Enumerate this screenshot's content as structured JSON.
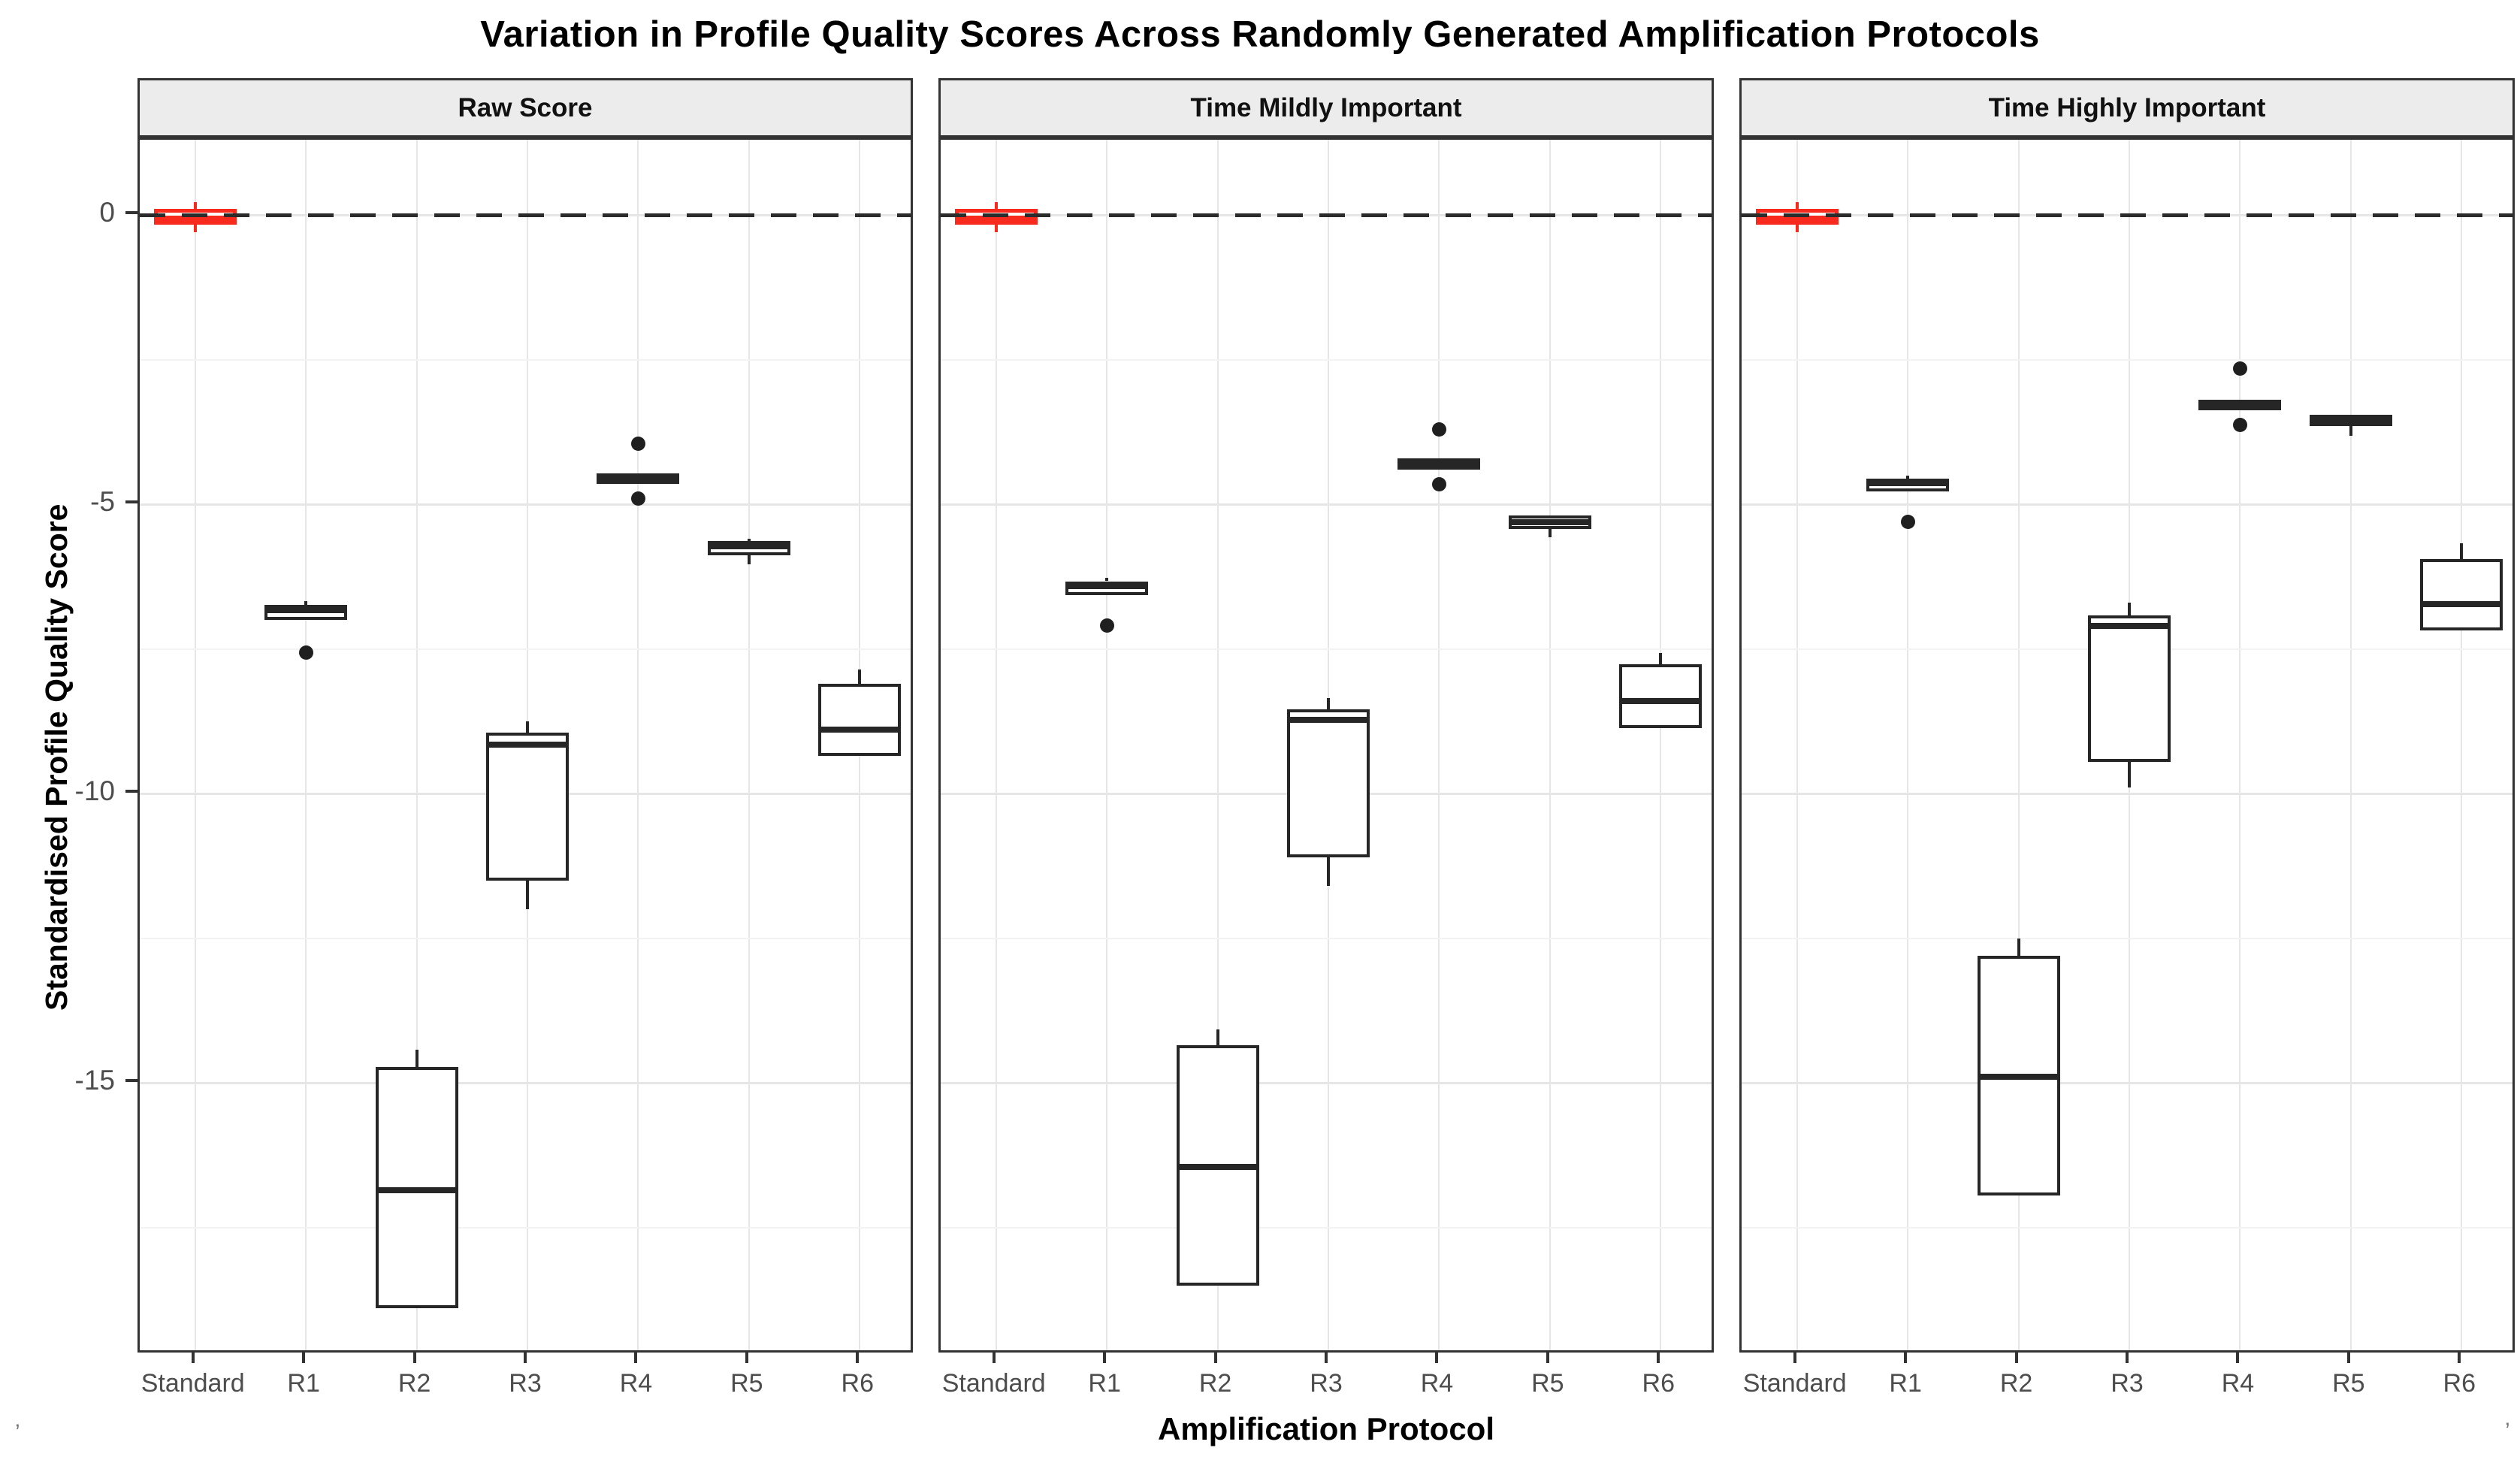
{
  "title": "Variation in Profile Quality Scores Across Randomly Generated Amplification Protocols",
  "axes": {
    "x_title": "Amplification Protocol",
    "y_title": "Standardised Profile Quality Score",
    "y_tick_labels": [
      "0",
      "-5",
      "-10",
      "-15"
    ],
    "x_category_labels": [
      "Standard",
      "R1",
      "R2",
      "R3",
      "R4",
      "R5",
      "R6"
    ]
  },
  "colors": {
    "highlight_red": "#f8291d",
    "box_stroke": "#262626",
    "grid_major": "#e6e6e6",
    "grid_minor": "#f3f3f3",
    "strip_bg": "#ececec",
    "panel_border": "#333333",
    "tick_label": "#4d4d4d",
    "zero_dash": "#2b2b2b"
  },
  "corner_artifacts": {
    "bottom_left": "’",
    "bottom_right": "’"
  },
  "chart_data": {
    "type": "boxplot",
    "title": "Variation in Profile Quality Scores Across Randomly Generated Amplification Protocols",
    "xlabel": "Amplification Protocol",
    "ylabel": "Standardised Profile Quality Score",
    "x_categories": [
      "Standard",
      "R1",
      "R2",
      "R3",
      "R4",
      "R5",
      "R6"
    ],
    "y_axis": {
      "major_ticks": [
        0,
        -5,
        -10,
        -15
      ],
      "minor_ticks": [
        -2.5,
        -7.5,
        -12.5,
        -17.5
      ],
      "range": [
        1.3,
        -19.7
      ]
    },
    "reference_line_y": 0,
    "legend": "none",
    "facets": [
      {
        "label": "Raw Score",
        "boxes": [
          {
            "category": "Standard",
            "highlight": true,
            "whisker_low": -0.3,
            "q1": -0.17,
            "median": -0.07,
            "q3": 0.1,
            "whisker_high": 0.22,
            "outliers": []
          },
          {
            "category": "R1",
            "highlight": false,
            "q1": -7.0,
            "median": -6.83,
            "q3": -6.74,
            "whisker_high": -6.68,
            "outliers": [
              -7.56
            ]
          },
          {
            "category": "R2",
            "highlight": false,
            "q1": -18.9,
            "median": -16.85,
            "q3": -14.72,
            "whisker_high": -14.43,
            "outliers": []
          },
          {
            "category": "R3",
            "highlight": false,
            "whisker_low": -12.0,
            "q1": -11.5,
            "median": -9.15,
            "q3": -8.95,
            "whisker_high": -8.75,
            "outliers": []
          },
          {
            "category": "R4",
            "highlight": false,
            "q1": -4.65,
            "median": -4.55,
            "q3": -4.46,
            "outliers": [
              -3.95,
              -4.9
            ]
          },
          {
            "category": "R5",
            "highlight": false,
            "whisker_low": -6.04,
            "q1": -5.88,
            "median": -5.73,
            "q3": -5.64,
            "whisker_high": -5.59,
            "outliers": []
          },
          {
            "category": "R6",
            "highlight": false,
            "q1": -9.35,
            "median": -8.9,
            "q3": -8.1,
            "whisker_high": -7.85,
            "outliers": []
          }
        ]
      },
      {
        "label": "Time Mildly Important",
        "boxes": [
          {
            "category": "Standard",
            "highlight": true,
            "whisker_low": -0.3,
            "q1": -0.17,
            "median": -0.07,
            "q3": 0.1,
            "whisker_high": 0.22,
            "outliers": []
          },
          {
            "category": "R1",
            "highlight": false,
            "q1": -6.57,
            "median": -6.41,
            "q3": -6.33,
            "whisker_high": -6.27,
            "outliers": [
              -7.1
            ]
          },
          {
            "category": "R2",
            "highlight": false,
            "q1": -18.5,
            "median": -16.45,
            "q3": -14.35,
            "whisker_high": -14.08,
            "outliers": []
          },
          {
            "category": "R3",
            "highlight": false,
            "whisker_low": -11.6,
            "q1": -11.1,
            "median": -8.72,
            "q3": -8.55,
            "whisker_high": -8.35,
            "outliers": []
          },
          {
            "category": "R4",
            "highlight": false,
            "q1": -4.4,
            "median": -4.3,
            "q3": -4.21,
            "outliers": [
              -3.7,
              -4.66
            ]
          },
          {
            "category": "R5",
            "highlight": false,
            "whisker_low": -5.57,
            "q1": -5.43,
            "median": -5.31,
            "q3": -5.19,
            "outliers": []
          },
          {
            "category": "R6",
            "highlight": false,
            "q1": -8.87,
            "median": -8.4,
            "q3": -7.77,
            "whisker_high": -7.57,
            "outliers": []
          }
        ]
      },
      {
        "label": "Time Highly Important",
        "boxes": [
          {
            "category": "Standard",
            "highlight": true,
            "whisker_low": -0.3,
            "q1": -0.17,
            "median": -0.07,
            "q3": 0.1,
            "whisker_high": 0.22,
            "outliers": []
          },
          {
            "category": "R1",
            "highlight": false,
            "q1": -4.78,
            "median": -4.64,
            "q3": -4.56,
            "whisker_high": -4.5,
            "outliers": [
              -5.31
            ]
          },
          {
            "category": "R2",
            "highlight": false,
            "q1": -16.95,
            "median": -14.9,
            "q3": -12.8,
            "whisker_high": -12.5,
            "outliers": []
          },
          {
            "category": "R3",
            "highlight": false,
            "whisker_low": -9.9,
            "q1": -9.45,
            "median": -7.1,
            "q3": -6.92,
            "whisker_high": -6.7,
            "outliers": []
          },
          {
            "category": "R4",
            "highlight": false,
            "q1": -3.37,
            "median": -3.27,
            "q3": -3.19,
            "outliers": [
              -2.66,
              -3.63
            ]
          },
          {
            "category": "R5",
            "highlight": false,
            "whisker_low": -3.82,
            "q1": -3.65,
            "median": -3.55,
            "q3": -3.45,
            "outliers": []
          },
          {
            "category": "R6",
            "highlight": false,
            "q1": -7.18,
            "median": -6.73,
            "q3": -5.95,
            "whisker_high": -5.68,
            "outliers": []
          }
        ]
      }
    ]
  }
}
